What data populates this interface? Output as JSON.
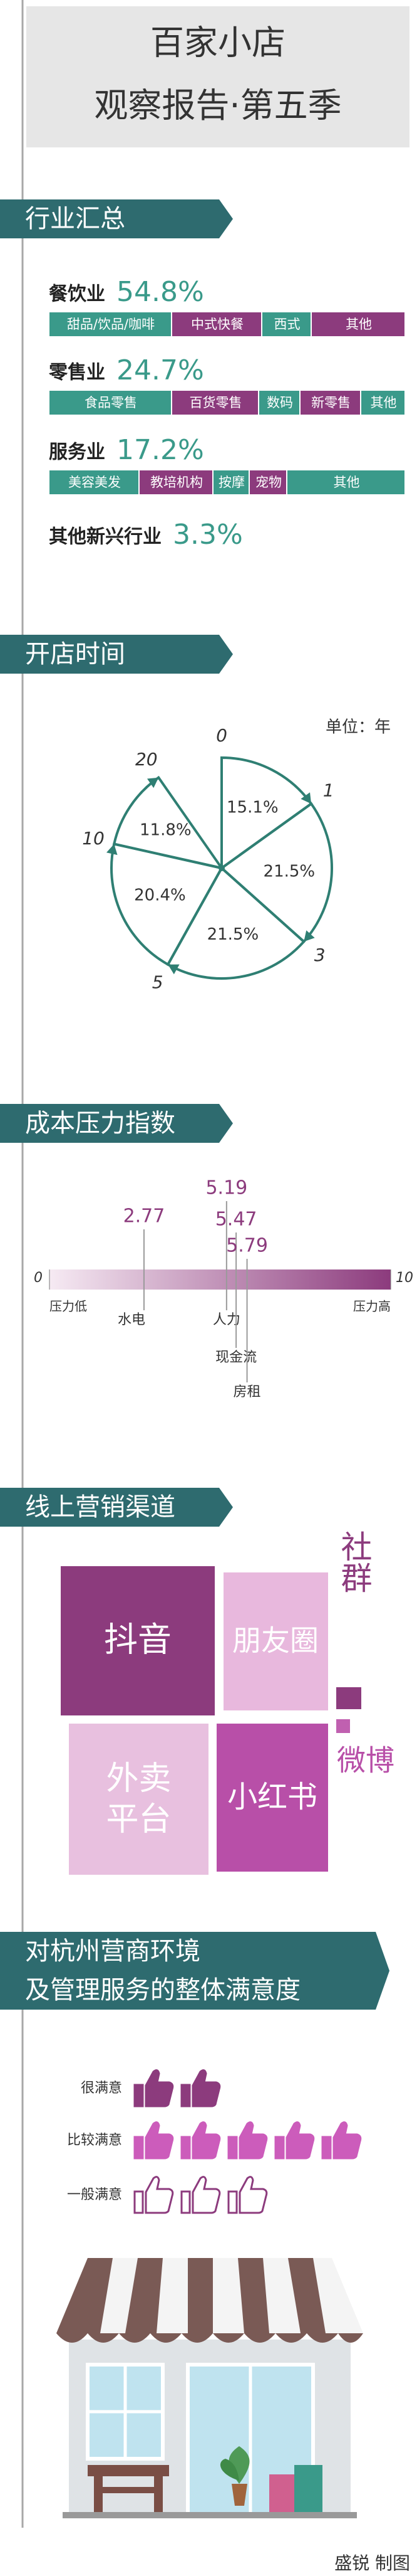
{
  "header": {
    "title_lines": [
      "百家小店",
      "观察报告·第五季"
    ]
  },
  "industry": {
    "heading": "行业汇总",
    "rows": [
      {
        "name": "餐饮业",
        "share": "54.8%",
        "segments": [
          "甜品/饮品/咖啡",
          "中式快餐",
          "西式",
          "其他"
        ]
      },
      {
        "name": "零售业",
        "share": "24.7%",
        "segments": [
          "食品零售",
          "百货零售",
          "数码",
          "新零售",
          "其他"
        ]
      },
      {
        "name": "服务业",
        "share": "17.2%",
        "segments": [
          "美容美发",
          "教培机构",
          "按摩",
          "宠物",
          "其他"
        ]
      },
      {
        "name": "其他新兴行业",
        "share": "3.3%",
        "segments": []
      }
    ]
  },
  "opening_time": {
    "heading": "开店时间",
    "unit": "单位：年",
    "boundaries": [
      0,
      1,
      3,
      5,
      10,
      20
    ],
    "values": [
      15.1,
      21.5,
      21.5,
      20.4,
      11.8
    ],
    "value_labels": [
      "15.1%",
      "21.5%",
      "21.5%",
      "20.4%",
      "11.8%"
    ]
  },
  "cost_pressure": {
    "heading": "成本压力指数",
    "xlim": [
      0,
      10
    ],
    "xticks": [
      0,
      10
    ],
    "low_label": "压力低",
    "high_label": "压力高",
    "items": [
      {
        "name": "水电",
        "value": 2.77
      },
      {
        "name": "人力",
        "value": 5.19
      },
      {
        "name": "现金流",
        "value": 5.47
      },
      {
        "name": "房租",
        "value": 5.79
      }
    ]
  },
  "channels": {
    "heading": "线上营销渠道",
    "items": [
      "抖音",
      "朋友圈",
      "社群",
      "外卖平台",
      "小红书",
      "微博"
    ]
  },
  "satisfaction": {
    "heading_lines": [
      "对杭州营商环境",
      "及管理服务的整体满意度"
    ],
    "rows": [
      {
        "label": "很满意",
        "count": 2
      },
      {
        "label": "比较满意",
        "count": 5
      },
      {
        "label": "一般满意",
        "count": 3
      }
    ]
  },
  "credit": "盛锐 制图"
}
